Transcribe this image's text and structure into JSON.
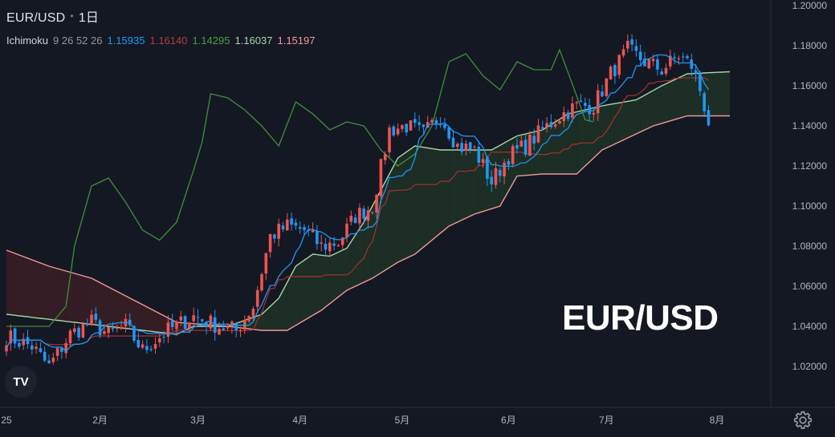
{
  "header": {
    "symbol": "EUR/USD",
    "interval": "1日",
    "indicator_name": "Ichimoku",
    "indicator_params": "9 26 52 26",
    "values": [
      {
        "text": "1.15935",
        "color": "#2196f3"
      },
      {
        "text": "1.16140",
        "color": "#b33a3a"
      },
      {
        "text": "1.14295",
        "color": "#43a047"
      },
      {
        "text": "1.16037",
        "color": "#a5d6a7"
      },
      {
        "text": "1.15197",
        "color": "#ef9a9a"
      }
    ]
  },
  "overlay_label": "EUR/USD",
  "logo_text": "TV",
  "colors": {
    "background": "#141823",
    "up": "#ef5350",
    "down": "#2196f3",
    "tenkan": "#2196f3",
    "kijun": "#a83232",
    "chikou": "#3f8f3f",
    "span_a": "#a5d6a7",
    "span_b": "#ef9a9a",
    "cloud_bull": "#1d3326",
    "cloud_bear": "#3a1f25"
  },
  "chart_data": {
    "type": "candlestick",
    "title": "EUR/USD",
    "x_ticks": [
      "25",
      "2月",
      "3月",
      "4月",
      "5月",
      "6月",
      "7月",
      "8月"
    ],
    "y_ticks": [
      "1.02000",
      "1.04000",
      "1.06000",
      "1.08000",
      "1.10000",
      "1.12000",
      "1.14000",
      "1.16000",
      "1.18000",
      "1.20000"
    ],
    "ylim": [
      1.0,
      1.2
    ],
    "grid": false,
    "close_anchors": [
      [
        0,
        1.035
      ],
      [
        6,
        1.03
      ],
      [
        10,
        1.02
      ],
      [
        15,
        1.036
      ],
      [
        20,
        1.042
      ],
      [
        24,
        1.036
      ],
      [
        28,
        1.04
      ],
      [
        32,
        1.028
      ],
      [
        38,
        1.038
      ],
      [
        44,
        1.045
      ],
      [
        50,
        1.04
      ],
      [
        54,
        1.038
      ],
      [
        58,
        1.05
      ],
      [
        62,
        1.085
      ],
      [
        66,
        1.09
      ],
      [
        70,
        1.088
      ],
      [
        74,
        1.08
      ],
      [
        78,
        1.082
      ],
      [
        82,
        1.095
      ],
      [
        86,
        1.1
      ],
      [
        90,
        1.138
      ],
      [
        94,
        1.14
      ],
      [
        98,
        1.136
      ],
      [
        102,
        1.145
      ],
      [
        106,
        1.13
      ],
      [
        110,
        1.128
      ],
      [
        114,
        1.112
      ],
      [
        118,
        1.125
      ],
      [
        122,
        1.13
      ],
      [
        126,
        1.138
      ],
      [
        130,
        1.145
      ],
      [
        134,
        1.15
      ],
      [
        138,
        1.15
      ],
      [
        142,
        1.166
      ],
      [
        146,
        1.178
      ],
      [
        150,
        1.172
      ],
      [
        154,
        1.168
      ],
      [
        158,
        1.175
      ],
      [
        161,
        1.17
      ],
      [
        163,
        1.158
      ],
      [
        165,
        1.142
      ]
    ],
    "span_a_anchors": [
      [
        0,
        1.046
      ],
      [
        40,
        1.036
      ],
      [
        44,
        1.04
      ],
      [
        52,
        1.04
      ],
      [
        60,
        1.046
      ],
      [
        64,
        1.054
      ],
      [
        68,
        1.07
      ],
      [
        72,
        1.076
      ],
      [
        76,
        1.075
      ],
      [
        80,
        1.079
      ],
      [
        84,
        1.092
      ],
      [
        88,
        1.108
      ],
      [
        92,
        1.124
      ],
      [
        96,
        1.13
      ],
      [
        102,
        1.128
      ],
      [
        108,
        1.128
      ],
      [
        114,
        1.128
      ],
      [
        120,
        1.135
      ],
      [
        126,
        1.138
      ],
      [
        132,
        1.146
      ],
      [
        140,
        1.15
      ],
      [
        148,
        1.153
      ],
      [
        154,
        1.16
      ],
      [
        160,
        1.166
      ],
      [
        170,
        1.167
      ]
    ],
    "span_b_anchors": [
      [
        0,
        1.078
      ],
      [
        10,
        1.07
      ],
      [
        20,
        1.064
      ],
      [
        40,
        1.042
      ],
      [
        52,
        1.04
      ],
      [
        60,
        1.038
      ],
      [
        66,
        1.038
      ],
      [
        74,
        1.048
      ],
      [
        80,
        1.058
      ],
      [
        86,
        1.064
      ],
      [
        92,
        1.072
      ],
      [
        96,
        1.076
      ],
      [
        104,
        1.09
      ],
      [
        110,
        1.096
      ],
      [
        116,
        1.1
      ],
      [
        120,
        1.115
      ],
      [
        126,
        1.116
      ],
      [
        134,
        1.116
      ],
      [
        140,
        1.128
      ],
      [
        146,
        1.134
      ],
      [
        152,
        1.14
      ],
      [
        160,
        1.145
      ],
      [
        170,
        1.145
      ]
    ],
    "chikou_anchors": [
      [
        10,
        1.04
      ],
      [
        14,
        1.05
      ],
      [
        16,
        1.08
      ],
      [
        20,
        1.11
      ],
      [
        24,
        1.114
      ],
      [
        28,
        1.102
      ],
      [
        32,
        1.088
      ],
      [
        36,
        1.083
      ],
      [
        40,
        1.092
      ],
      [
        44,
        1.118
      ],
      [
        46,
        1.132
      ],
      [
        48,
        1.156
      ],
      [
        52,
        1.154
      ],
      [
        56,
        1.148
      ],
      [
        60,
        1.14
      ],
      [
        64,
        1.13
      ],
      [
        68,
        1.152
      ],
      [
        72,
        1.146
      ],
      [
        76,
        1.138
      ],
      [
        80,
        1.142
      ],
      [
        84,
        1.14
      ],
      [
        88,
        1.128
      ],
      [
        92,
        1.12
      ],
      [
        96,
        1.126
      ],
      [
        100,
        1.14
      ],
      [
        104,
        1.172
      ],
      [
        108,
        1.176
      ],
      [
        112,
        1.165
      ],
      [
        116,
        1.158
      ],
      [
        120,
        1.172
      ],
      [
        124,
        1.168
      ],
      [
        128,
        1.168
      ],
      [
        130,
        1.178
      ],
      [
        134,
        1.155
      ],
      [
        136,
        1.143
      ],
      [
        138,
        1.142
      ]
    ],
    "bar_count": 166,
    "span_count": 171
  }
}
